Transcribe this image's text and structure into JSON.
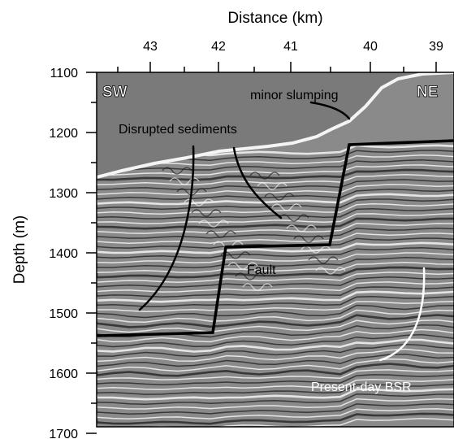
{
  "figure": {
    "x_axis": {
      "title": "Distance (km)",
      "ticks": [
        "43",
        "42",
        "41",
        "40",
        "39"
      ]
    },
    "y_axis": {
      "title": "Depth (m)",
      "ticks": [
        "1100",
        "1200",
        "1300",
        "1400",
        "1500",
        "1600",
        "1700"
      ]
    },
    "labels": {
      "sw": "SW",
      "ne": "NE",
      "minor_slumping": "minor slumping",
      "disrupted_sediments": "Disrupted sediments",
      "fault": "Fault",
      "bsr": "Present-day BSR"
    },
    "colors": {
      "background": "#ffffff",
      "water": "#7a7a7a",
      "reflector_light": "#f4f4f4",
      "reflector_dark": "#1c1c1c",
      "annotation_line": "#000000",
      "bsr_line": "#ffffff"
    }
  }
}
